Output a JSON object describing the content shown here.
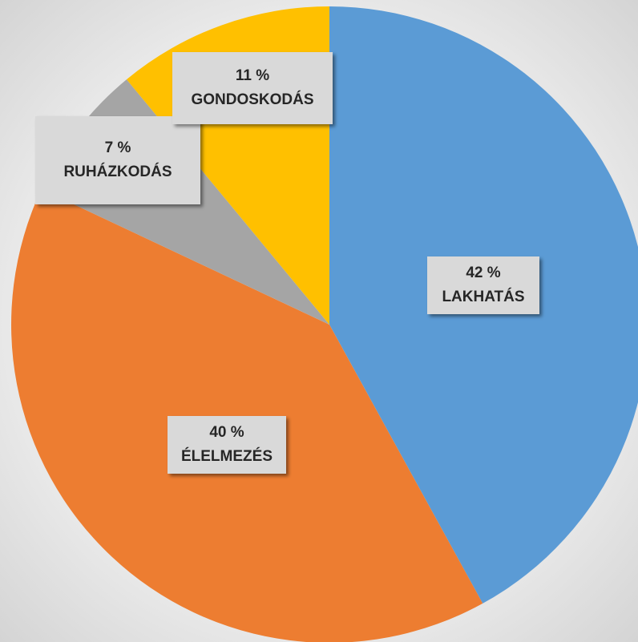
{
  "chart_data": {
    "type": "pie",
    "categories": [
      "LAKHATÁS",
      "ÉLELMEZÉS",
      "RUHÁZKODÁS",
      "GONDOSKODÁS"
    ],
    "values": [
      42,
      40,
      7,
      11
    ],
    "value_labels": [
      "42 %",
      "40 %",
      "7 %",
      "11 %"
    ],
    "colors": [
      "#5b9bd5",
      "#ed7d31",
      "#a5a5a5",
      "#ffc000"
    ]
  }
}
